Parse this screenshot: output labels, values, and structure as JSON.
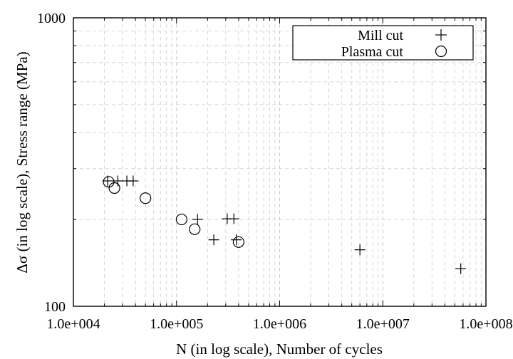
{
  "chart_data": {
    "type": "scatter",
    "xlabel": "N (in log scale), Number of cycles",
    "ylabel": "Δσ (in log scale), Stress range (MPa)",
    "x_scale": "log",
    "y_scale": "log",
    "xlim": [
      10000,
      100000000
    ],
    "ylim": [
      100,
      1000
    ],
    "x_ticks": [
      "1.0e+004",
      "1.0e+005",
      "1.0e+006",
      "1.0e+007",
      "1.0e+008"
    ],
    "y_ticks": [
      "100",
      "1000"
    ],
    "grid": true,
    "legend_position": "top-right",
    "series": [
      {
        "name": "Mill cut",
        "marker": "plus",
        "points": [
          [
            21500,
            272
          ],
          [
            27000,
            272
          ],
          [
            33000,
            272
          ],
          [
            38000,
            272
          ],
          [
            160000,
            200
          ],
          [
            230000,
            170
          ],
          [
            310000,
            201
          ],
          [
            360000,
            201
          ],
          [
            380000,
            170
          ],
          [
            6000000,
            157
          ],
          [
            57000000,
            135
          ]
        ]
      },
      {
        "name": "Plasma cut",
        "marker": "circle",
        "points": [
          [
            22000,
            270
          ],
          [
            25000,
            257
          ],
          [
            50000,
            237
          ],
          [
            112000,
            200
          ],
          [
            150000,
            185
          ],
          [
            400000,
            167
          ]
        ]
      }
    ]
  }
}
